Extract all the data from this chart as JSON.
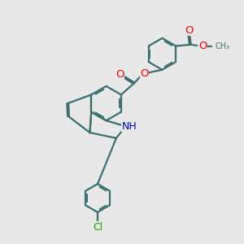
{
  "bg_color": "#e8e8e8",
  "bond_color": "#3a7070",
  "bond_width": 1.6,
  "atom_colors": {
    "O": "#ff0000",
    "N": "#0000cc",
    "Cl": "#00aa00",
    "C": "#3a7070"
  },
  "font_size": 8.5
}
